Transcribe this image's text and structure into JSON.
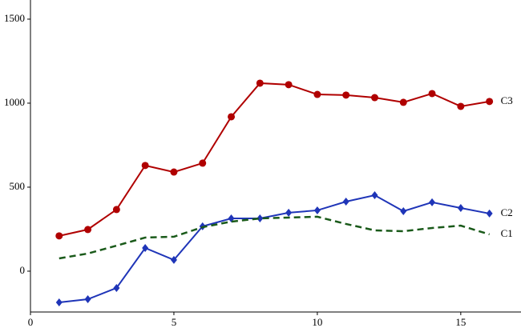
{
  "chart_data": {
    "type": "line",
    "x": [
      1,
      2,
      3,
      4,
      5,
      6,
      7,
      8,
      9,
      10,
      11,
      12,
      13,
      14,
      15,
      16
    ],
    "series": [
      {
        "name": "C3",
        "color": "#b00000",
        "marker": "circle",
        "dashed": false,
        "values": [
          210,
          248,
          367,
          629,
          590,
          643,
          919,
          1119,
          1110,
          1052,
          1048,
          1033,
          1005,
          1057,
          981,
          1010
        ]
      },
      {
        "name": "C2",
        "color": "#1f35b8",
        "marker": "diamond",
        "dashed": false,
        "values": [
          -186,
          -167,
          -100,
          138,
          67,
          267,
          314,
          314,
          348,
          362,
          414,
          452,
          357,
          410,
          376,
          343
        ]
      },
      {
        "name": "C1",
        "color": "#1a5a1a",
        "marker": null,
        "dashed": true,
        "values": [
          76,
          105,
          152,
          200,
          205,
          262,
          295,
          314,
          319,
          324,
          281,
          243,
          238,
          257,
          271,
          219
        ]
      }
    ],
    "xlim": [
      0,
      17.1
    ],
    "xticks": [
      0,
      5,
      10,
      15
    ],
    "ylim": [
      -243,
      1614
    ],
    "yticks": [
      0,
      500,
      1000,
      1500
    ]
  }
}
